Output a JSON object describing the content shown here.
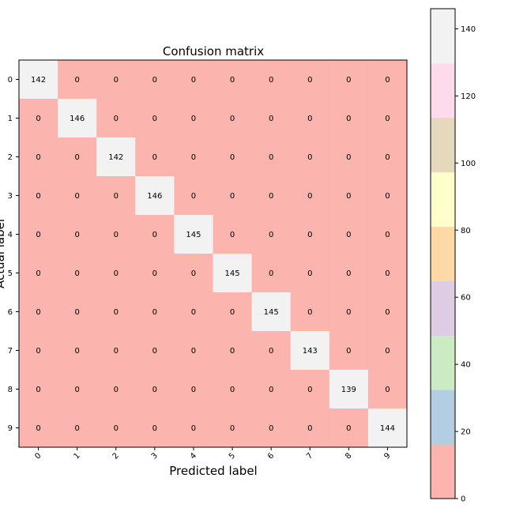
{
  "chart_data": {
    "type": "heatmap",
    "title": "Confusion matrix",
    "xlabel": "Predicted label",
    "ylabel": "Actual label",
    "x_categories": [
      "0",
      "1",
      "2",
      "3",
      "4",
      "5",
      "6",
      "7",
      "8",
      "9"
    ],
    "y_categories": [
      "0",
      "1",
      "2",
      "3",
      "4",
      "5",
      "6",
      "7",
      "8",
      "9"
    ],
    "matrix": [
      [
        142,
        0,
        0,
        0,
        0,
        0,
        0,
        0,
        0,
        0
      ],
      [
        0,
        146,
        0,
        0,
        0,
        0,
        0,
        0,
        0,
        0
      ],
      [
        0,
        0,
        142,
        0,
        0,
        0,
        0,
        0,
        0,
        0
      ],
      [
        0,
        0,
        0,
        146,
        0,
        0,
        0,
        0,
        0,
        0
      ],
      [
        0,
        0,
        0,
        0,
        145,
        0,
        0,
        0,
        0,
        0
      ],
      [
        0,
        0,
        0,
        0,
        0,
        145,
        0,
        0,
        0,
        0
      ],
      [
        0,
        0,
        0,
        0,
        0,
        0,
        145,
        0,
        0,
        0
      ],
      [
        0,
        0,
        0,
        0,
        0,
        0,
        0,
        143,
        0,
        0
      ],
      [
        0,
        0,
        0,
        0,
        0,
        0,
        0,
        0,
        139,
        0
      ],
      [
        0,
        0,
        0,
        0,
        0,
        0,
        0,
        0,
        0,
        144
      ]
    ],
    "x_tick_rotation_deg": -45,
    "grid": false,
    "colormap": "Pastel1",
    "colorbar": {
      "min": 0,
      "max": 146,
      "ticks": [
        0,
        20,
        40,
        60,
        80,
        100,
        120,
        140
      ],
      "colors": [
        "#fbb4ae",
        "#b3cde3",
        "#ccebc5",
        "#decbe4",
        "#fed9a6",
        "#ffffcc",
        "#e5d8bd",
        "#fddaec",
        "#f2f2f2"
      ]
    }
  }
}
